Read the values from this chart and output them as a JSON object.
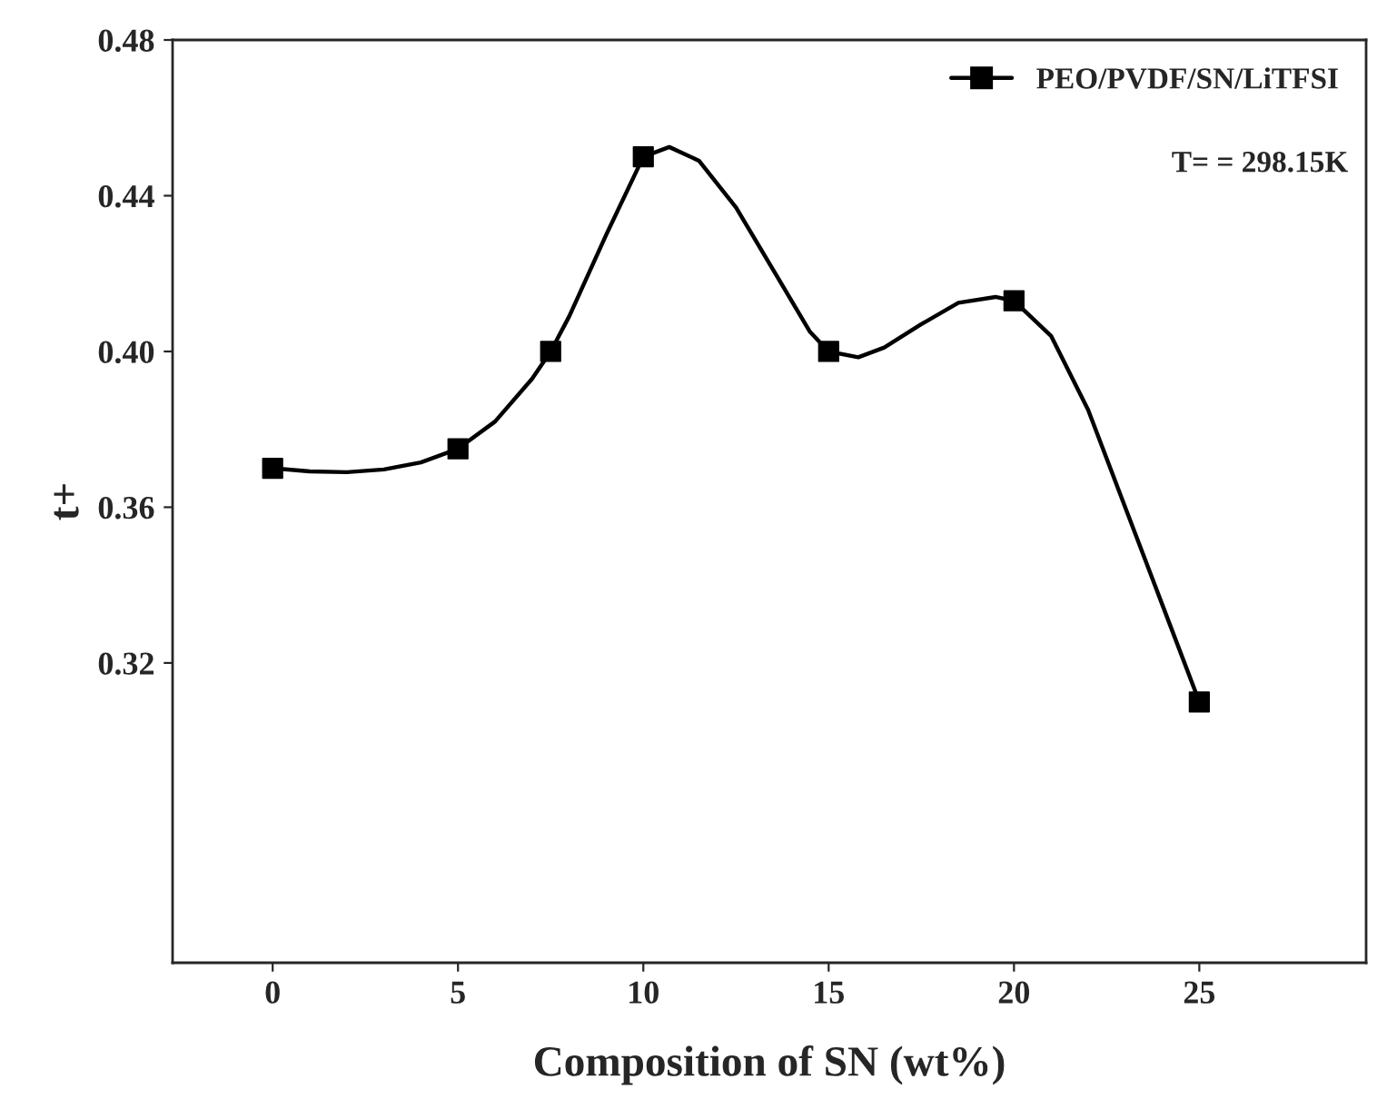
{
  "chart_data": {
    "type": "scatter",
    "xlabel": "Composition of SN (wt%)",
    "ylabel": "t+",
    "x": [
      0,
      5,
      7.5,
      10,
      15,
      20,
      25
    ],
    "series": [
      {
        "type": "line",
        "color": "#000000",
        "x": [
          0,
          1,
          2,
          3,
          4,
          5,
          6,
          7,
          7.5,
          8,
          9,
          10,
          10.7,
          11.5,
          12.5,
          13.5,
          14.5,
          15,
          15.8,
          16.5,
          17.5,
          18.5,
          19.5,
          20,
          21,
          22,
          23,
          24,
          25
        ],
        "values": [
          0.37,
          0.3692,
          0.369,
          0.3697,
          0.3715,
          0.375,
          0.382,
          0.393,
          0.4,
          0.409,
          0.43,
          0.45,
          0.4525,
          0.449,
          0.437,
          0.421,
          0.405,
          0.4,
          0.3985,
          0.401,
          0.407,
          0.4125,
          0.414,
          0.413,
          0.404,
          0.385,
          0.36,
          0.335,
          0.31
        ]
      },
      {
        "name": "PEO/PVDF/SN/LiTFSI",
        "color": "#000000",
        "marker": "square",
        "values": [
          0.37,
          0.375,
          0.4,
          0.45,
          0.4,
          0.413,
          0.31
        ]
      }
    ],
    "xlim": [
      -2.7,
      29.5
    ],
    "xticks": [
      0,
      5,
      10,
      15,
      20,
      25
    ],
    "ylim": [
      0.243,
      0.48
    ],
    "yticks": [
      {
        "value": 0.32,
        "label": "0.32"
      },
      {
        "value": 0.36,
        "label": "0.36"
      },
      {
        "value": 0.4,
        "label": "0.40"
      },
      {
        "value": 0.44,
        "label": "0.44"
      },
      {
        "value": 0.48,
        "label": "0.48"
      }
    ],
    "line_style": "solid",
    "grid": false,
    "legend": "top right",
    "annotations": [
      "T= = 298.15K"
    ]
  }
}
